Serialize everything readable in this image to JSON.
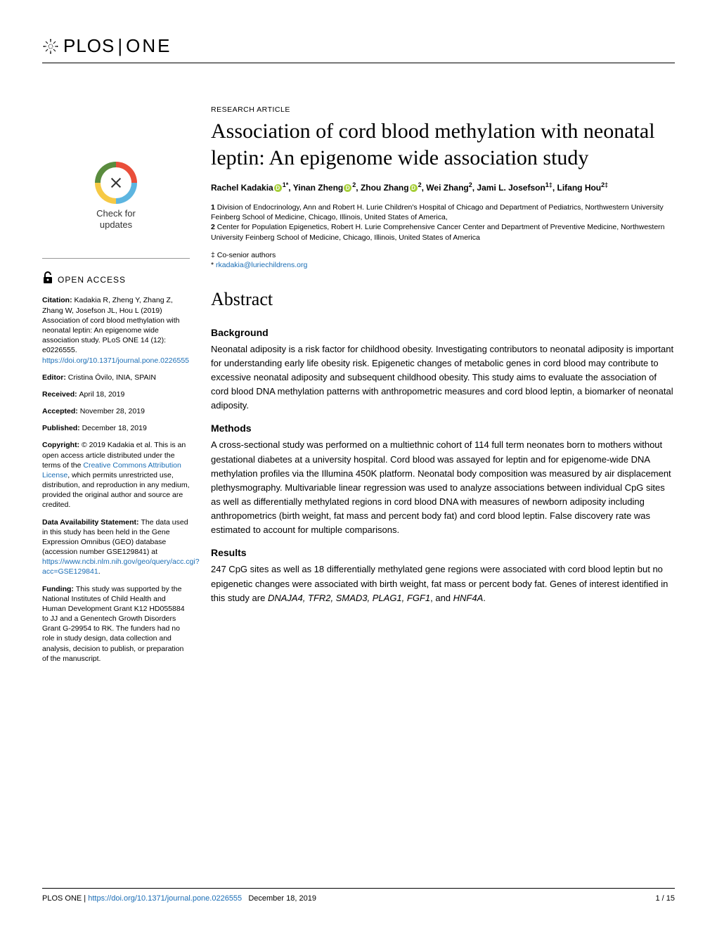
{
  "journal": {
    "logo_plos": "PLOS",
    "logo_one": "ONE"
  },
  "header": {
    "article_type": "RESEARCH ARTICLE",
    "title": "Association of cord blood methylation with neonatal leptin: An epigenome wide association study"
  },
  "authors_html": "Rachel Kadakia{orcid}¹*, Yinan Zheng{orcid}², Zhou Zhang{orcid}², Wei Zhang², Jami L. Josefson¹‡, Lifang Hou²‡",
  "authors": [
    {
      "name": "Rachel Kadakia",
      "orcid": true,
      "sup": "1",
      "marks": "*"
    },
    {
      "name": "Yinan Zheng",
      "orcid": true,
      "sup": "2",
      "marks": ""
    },
    {
      "name": "Zhou Zhang",
      "orcid": true,
      "sup": "2",
      "marks": ""
    },
    {
      "name": "Wei Zhang",
      "orcid": false,
      "sup": "2",
      "marks": ""
    },
    {
      "name": "Jami L. Josefson",
      "orcid": false,
      "sup": "1‡",
      "marks": ""
    },
    {
      "name": "Lifang Hou",
      "orcid": false,
      "sup": "2‡",
      "marks": ""
    }
  ],
  "affiliations": {
    "a1": "1",
    "a1_text": " Division of Endocrinology, Ann and Robert H. Lurie Children's Hospital of Chicago and Department of Pediatrics, Northwestern University Feinberg School of Medicine, Chicago, Illinois, United States of America,",
    "a2": "2",
    "a2_text": " Center for Population Epigenetics, Robert H. Lurie Comprehensive Cancer Center and Department of Preventive Medicine, Northwestern University Feinberg School of Medicine, Chicago, Illinois, United States of America"
  },
  "notes": {
    "cosenior": "‡ Co-senior authors",
    "corr_mark": "* ",
    "corr_email": "rkadakia@luriechildrens.org"
  },
  "abstract": {
    "heading": "Abstract",
    "background_h": "Background",
    "background": "Neonatal adiposity is a risk factor for childhood obesity. Investigating contributors to neonatal adiposity is important for understanding early life obesity risk. Epigenetic changes of metabolic genes in cord blood may contribute to excessive neonatal adiposity and subsequent childhood obesity. This study aims to evaluate the association of cord blood DNA methylation patterns with anthropometric measures and cord blood leptin, a biomarker of neonatal adiposity.",
    "methods_h": "Methods",
    "methods": "A cross-sectional study was performed on a multiethnic cohort of 114 full term neonates born to mothers without gestational diabetes at a university hospital. Cord blood was assayed for leptin and for epigenome-wide DNA methylation profiles via the Illumina 450K platform. Neonatal body composition was measured by air displacement plethysmography. Multivariable linear regression was used to analyze associations between individual CpG sites as well as differentially methylated regions in cord blood DNA with measures of newborn adiposity including anthropometrics (birth weight, fat mass and percent body fat) and cord blood leptin. False discovery rate was estimated to account for multiple comparisons.",
    "results_h": "Results",
    "results_pre": "247 CpG sites as well as 18 differentially methylated gene regions were associated with cord blood leptin but no epigenetic changes were associated with birth weight, fat mass or percent body fat. Genes of interest identified in this study are ",
    "results_genes": "DNAJA4, TFR2, SMAD3, PLAG1, FGF1",
    "results_and": ", and ",
    "results_lastgene": "HNF4A",
    "results_end": "."
  },
  "sidebar": {
    "crossmark_label1": "Check for",
    "crossmark_label2": "updates",
    "open_access": "OPEN ACCESS",
    "citation_label": "Citation: ",
    "citation": "Kadakia R, Zheng Y, Zhang Z, Zhang W, Josefson JL, Hou L (2019) Association of cord blood methylation with neonatal leptin: An epigenome wide association study. PLoS ONE 14 (12): e0226555. ",
    "citation_link": "https://doi.org/10.1371/journal.pone.0226555",
    "editor_label": "Editor: ",
    "editor": "Cristina Óvilo, INIA, SPAIN",
    "received_label": "Received: ",
    "received": "April 18, 2019",
    "accepted_label": "Accepted: ",
    "accepted": "November 28, 2019",
    "published_label": "Published: ",
    "published": "December 18, 2019",
    "copyright_label": "Copyright: ",
    "copyright_pre": "© 2019 Kadakia et al. This is an open access article distributed under the terms of the ",
    "copyright_link": "Creative Commons Attribution License",
    "copyright_post": ", which permits unrestricted use, distribution, and reproduction in any medium, provided the original author and source are credited.",
    "data_label": "Data Availability Statement: ",
    "data_pre": "The data used in this study has been held in the Gene Expression Omnibus (GEO) database (accession number GSE129841) at ",
    "data_link": "https://www.ncbi.nlm.nih.gov/geo/query/acc.cgi?acc=GSE129841",
    "data_post": ".",
    "funding_label": "Funding: ",
    "funding": "This study was supported by the National Institutes of Child Health and Human Development Grant K12 HD055884 to JJ and a Genentech Growth Disorders Grant G-29954 to RK. The funders had no role in study design, data collection and analysis, decision to publish, or preparation of the manuscript."
  },
  "footer": {
    "journal": "PLOS ONE | ",
    "doi_link": "https://doi.org/10.1371/journal.pone.0226555",
    "date": "December 18, 2019",
    "page": "1 / 15"
  },
  "colors": {
    "link": "#1a6db5",
    "orcid": "#a6ce39"
  }
}
